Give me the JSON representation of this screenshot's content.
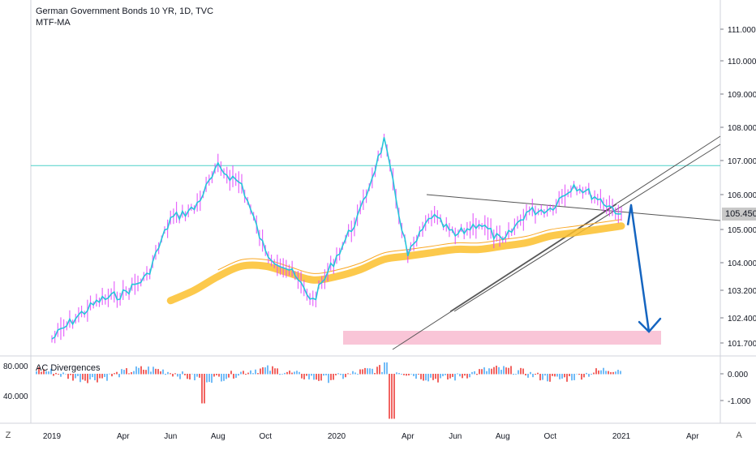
{
  "legend": {
    "symbol_line": "German Government Bonds 10 YR, 1D, TVC",
    "indicator": "MTF-MA"
  },
  "sub_pane": {
    "title": "AC Divergences",
    "y_ticks": [
      "0.000",
      "-1.000"
    ],
    "left_ticks": [
      "80.000",
      "40.000"
    ]
  },
  "buttons": {
    "z_label": "Z",
    "a_label": "A"
  },
  "price_axis": {
    "ticks": [
      "111.000",
      "110.000",
      "109.000",
      "108.000",
      "107.000",
      "106.000",
      "105.000",
      "104.000",
      "103.200",
      "102.400",
      "101.700"
    ],
    "last_price": "105.450"
  },
  "time_axis": {
    "ticks": [
      "2019",
      "Apr",
      "Jun",
      "Aug",
      "Oct",
      "2020",
      "Apr",
      "Jun",
      "Aug",
      "Oct",
      "2021",
      "Apr"
    ]
  },
  "colors": {
    "price_line": "#26c6da",
    "candles": "#e040fb",
    "ma_band": "#fbc02d",
    "horizontal_level": "#4dd0c8",
    "support_zone": "#f8bbd0",
    "forecast_arrow": "#1565c0",
    "trendlines": "#555555",
    "hist_up": "#64b5f6",
    "hist_down": "#ef5350"
  },
  "chart_data": {
    "type": "line",
    "title": "German Government Bonds 10 YR, 1D, TVC",
    "xlabel": "",
    "ylabel": "",
    "ylim": [
      101.5,
      111.5
    ],
    "x": [
      "2019-01",
      "2019-02",
      "2019-03",
      "2019-04",
      "2019-05",
      "2019-06",
      "2019-07",
      "2019-08",
      "2019-09",
      "2019-10",
      "2019-11",
      "2019-12",
      "2020-01",
      "2020-02",
      "2020-03",
      "2020-04",
      "2020-05",
      "2020-06",
      "2020-07",
      "2020-08",
      "2020-09",
      "2020-10",
      "2020-11",
      "2020-12",
      "2021-01"
    ],
    "series": [
      {
        "values": [
          101.8,
          102.4,
          102.9,
          103.1,
          103.6,
          105.3,
          105.6,
          106.8,
          106.3,
          104.3,
          103.8,
          102.9,
          104.2,
          105.5,
          107.6,
          104.2,
          105.4,
          104.8,
          105.2,
          104.6,
          105.5,
          105.6,
          106.3,
          105.9,
          105.45
        ]
      },
      {
        "values": [
          101.0,
          101.3,
          101.7,
          102.0,
          102.4,
          102.9,
          103.2,
          103.6,
          103.9,
          103.9,
          103.7,
          103.5,
          103.6,
          103.8,
          104.1,
          104.2,
          104.3,
          104.4,
          104.4,
          104.5,
          104.6,
          104.8,
          104.9,
          105.0,
          105.1
        ]
      }
    ],
    "levels": {
      "resistance": 106.85,
      "support_zone": [
        101.75,
        101.95
      ]
    },
    "forecast": {
      "from": 105.7,
      "to": 102.1
    }
  }
}
